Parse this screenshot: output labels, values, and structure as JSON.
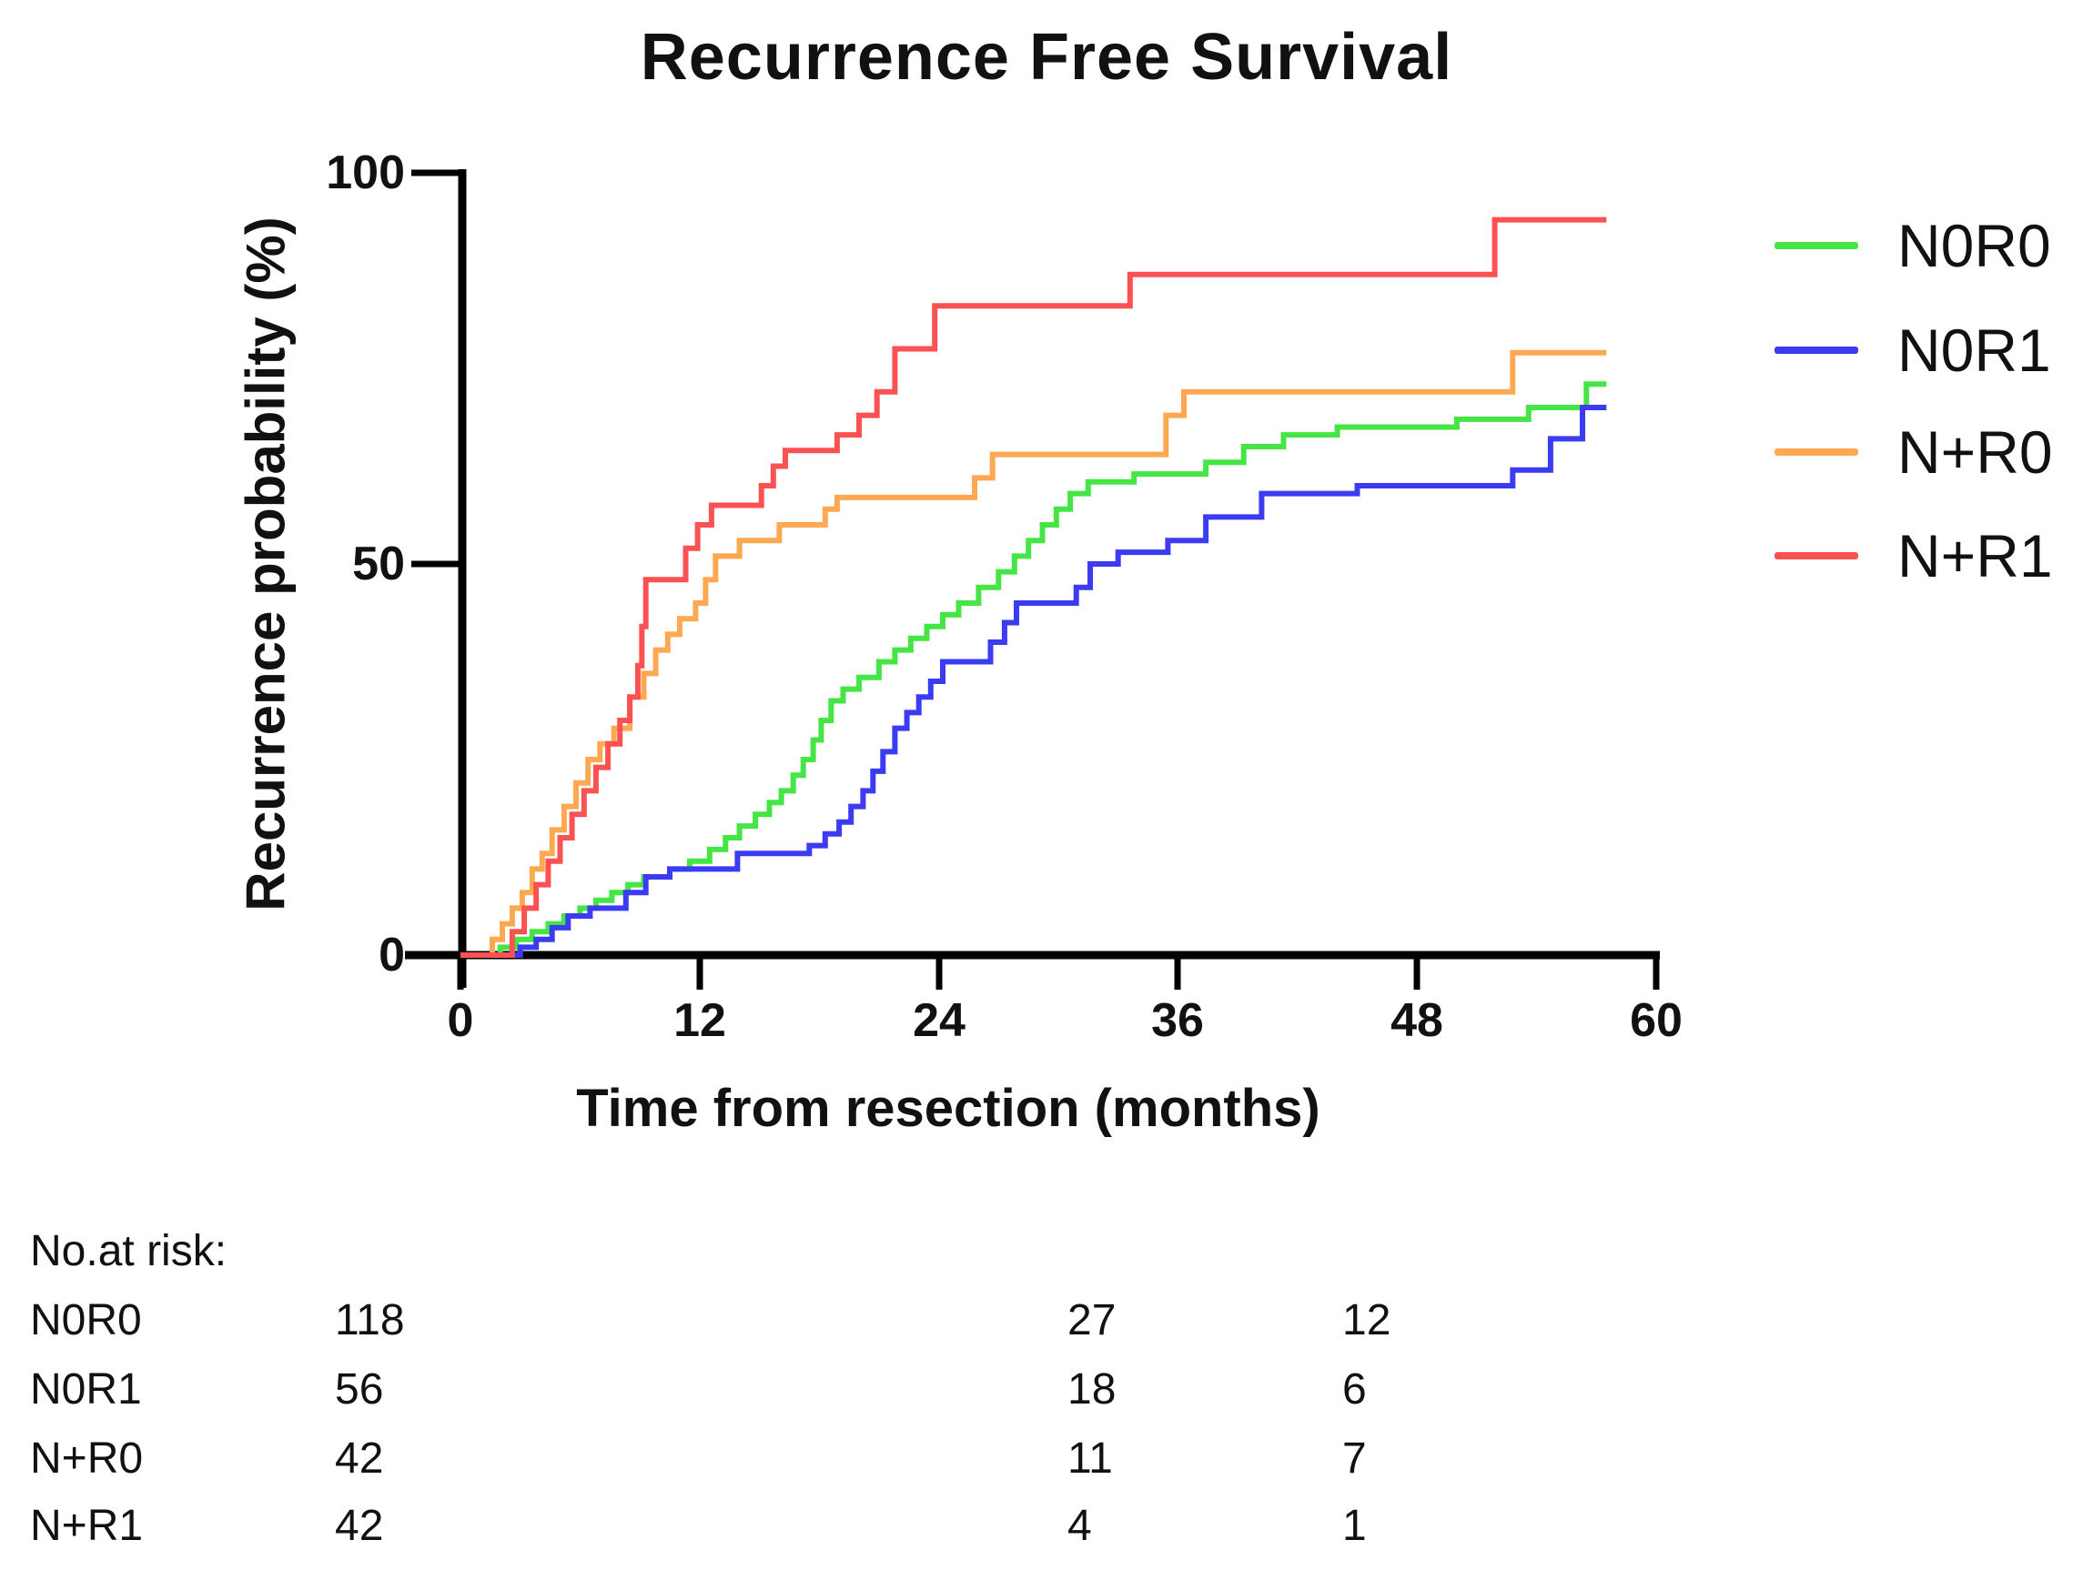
{
  "title": "Recurrence Free Survival",
  "y_axis": {
    "label": "Recurrence probability (%)",
    "ticks": [
      "100",
      "50",
      "0"
    ]
  },
  "x_axis": {
    "label": "Time from resection (months)",
    "ticks": [
      "0",
      "12",
      "24",
      "36",
      "48",
      "60"
    ]
  },
  "risk_table": {
    "heading": "No.at risk:",
    "rows": [
      {
        "label": "N0R0",
        "values": [
          "118",
          "27",
          "12"
        ]
      },
      {
        "label": "N0R1",
        "values": [
          "56",
          "18",
          "6"
        ]
      },
      {
        "label": "N+R0",
        "values": [
          "42",
          "11",
          "7"
        ]
      },
      {
        "label": "N+R1",
        "values": [
          "42",
          "4",
          "1"
        ]
      }
    ]
  },
  "chart_data": {
    "type": "line",
    "subtype": "kaplan-meier-step",
    "title": "Recurrence Free Survival",
    "xlabel": "Time from resection (months)",
    "ylabel": "Recurrence probability (%)",
    "xlim": [
      0,
      60
    ],
    "ylim": [
      0,
      100
    ],
    "x_ticks": [
      0,
      12,
      24,
      36,
      48,
      60
    ],
    "y_ticks": [
      0,
      50,
      100
    ],
    "grid": false,
    "legend_position": "right",
    "x_end": 57.5,
    "series": [
      {
        "name": "N0R0",
        "color": "#44E544",
        "points": [
          [
            0,
            0
          ],
          [
            2,
            1
          ],
          [
            2.8,
            2
          ],
          [
            3.6,
            3
          ],
          [
            4.4,
            4
          ],
          [
            5.2,
            5
          ],
          [
            6,
            6
          ],
          [
            6.8,
            7
          ],
          [
            7.6,
            8
          ],
          [
            8.4,
            9
          ],
          [
            9.2,
            10
          ],
          [
            10.5,
            11
          ],
          [
            11.5,
            12
          ],
          [
            12.5,
            13.5
          ],
          [
            13.3,
            15
          ],
          [
            14,
            16.5
          ],
          [
            14.8,
            18
          ],
          [
            15.5,
            19.5
          ],
          [
            16.1,
            21
          ],
          [
            16.7,
            23
          ],
          [
            17.2,
            25
          ],
          [
            17.7,
            27.5
          ],
          [
            18.1,
            30
          ],
          [
            18.6,
            32.5
          ],
          [
            19.2,
            34
          ],
          [
            20,
            35.5
          ],
          [
            21,
            37.5
          ],
          [
            21.8,
            39
          ],
          [
            22.6,
            40.5
          ],
          [
            23.4,
            42
          ],
          [
            24.2,
            43.5
          ],
          [
            25,
            45
          ],
          [
            26,
            47
          ],
          [
            27,
            49
          ],
          [
            27.8,
            51
          ],
          [
            28.5,
            53
          ],
          [
            29.2,
            55
          ],
          [
            29.9,
            57
          ],
          [
            30.6,
            59
          ],
          [
            31.5,
            60.5
          ],
          [
            33.8,
            61.5
          ],
          [
            37.4,
            63
          ],
          [
            39.3,
            65
          ],
          [
            41.3,
            66.5
          ],
          [
            44,
            67.5
          ],
          [
            50,
            68.5
          ],
          [
            53.6,
            70
          ],
          [
            56.5,
            73
          ]
        ]
      },
      {
        "name": "N0R1",
        "color": "#3B3BF2",
        "points": [
          [
            0,
            0
          ],
          [
            3,
            1
          ],
          [
            3.8,
            2
          ],
          [
            4.6,
            3.5
          ],
          [
            5.4,
            5
          ],
          [
            6.5,
            6
          ],
          [
            8.3,
            8
          ],
          [
            9.3,
            10
          ],
          [
            10.5,
            11
          ],
          [
            13.9,
            13
          ],
          [
            17.5,
            14
          ],
          [
            18.3,
            15.5
          ],
          [
            19,
            17
          ],
          [
            19.6,
            19
          ],
          [
            20.2,
            21
          ],
          [
            20.7,
            23.5
          ],
          [
            21.2,
            26
          ],
          [
            21.8,
            29
          ],
          [
            22.4,
            31
          ],
          [
            23,
            33
          ],
          [
            23.6,
            35
          ],
          [
            24.2,
            37.5
          ],
          [
            26.6,
            40
          ],
          [
            27.3,
            42.5
          ],
          [
            27.9,
            45
          ],
          [
            30.9,
            47
          ],
          [
            31.6,
            50
          ],
          [
            33,
            51.5
          ],
          [
            35.5,
            53
          ],
          [
            37.4,
            56
          ],
          [
            40.2,
            59
          ],
          [
            45,
            60
          ],
          [
            52.8,
            62
          ],
          [
            54.7,
            66
          ],
          [
            56.3,
            70
          ]
        ]
      },
      {
        "name": "N+R0",
        "color": "#FFA852",
        "points": [
          [
            0,
            0
          ],
          [
            1.6,
            2
          ],
          [
            2.1,
            4
          ],
          [
            2.6,
            6
          ],
          [
            3.1,
            8
          ],
          [
            3.6,
            11
          ],
          [
            4.1,
            13
          ],
          [
            4.6,
            16
          ],
          [
            5.2,
            19
          ],
          [
            5.8,
            22
          ],
          [
            6.4,
            25
          ],
          [
            7,
            27
          ],
          [
            7.7,
            29
          ],
          [
            8.5,
            33
          ],
          [
            9.2,
            36
          ],
          [
            9.8,
            39
          ],
          [
            10.4,
            41
          ],
          [
            11,
            43
          ],
          [
            11.8,
            45
          ],
          [
            12.3,
            48
          ],
          [
            12.8,
            51
          ],
          [
            14,
            53
          ],
          [
            16,
            55
          ],
          [
            18.3,
            57
          ],
          [
            18.9,
            58.5
          ],
          [
            25.8,
            61
          ],
          [
            26.7,
            64
          ],
          [
            35.4,
            69
          ],
          [
            36.3,
            72
          ],
          [
            52.8,
            77
          ]
        ]
      },
      {
        "name": "N+R1",
        "color": "#FA5252",
        "points": [
          [
            0,
            0
          ],
          [
            2.6,
            3
          ],
          [
            3.2,
            6
          ],
          [
            3.8,
            9
          ],
          [
            4.4,
            12
          ],
          [
            5,
            15
          ],
          [
            5.6,
            18
          ],
          [
            6.2,
            21
          ],
          [
            6.8,
            24
          ],
          [
            7.4,
            27
          ],
          [
            8,
            30
          ],
          [
            8.5,
            33
          ],
          [
            8.9,
            37
          ],
          [
            9.1,
            42
          ],
          [
            9.3,
            48
          ],
          [
            11.3,
            52
          ],
          [
            11.9,
            55
          ],
          [
            12.6,
            57.5
          ],
          [
            15.1,
            60
          ],
          [
            15.7,
            62.5
          ],
          [
            16.3,
            64.5
          ],
          [
            18.9,
            66.5
          ],
          [
            20,
            69
          ],
          [
            20.9,
            72
          ],
          [
            21.8,
            77.5
          ],
          [
            23.8,
            83
          ],
          [
            33.6,
            87
          ],
          [
            51.9,
            94
          ]
        ]
      }
    ]
  }
}
